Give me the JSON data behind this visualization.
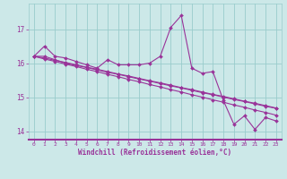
{
  "xlabel": "Windchill (Refroidissement éolien,°C)",
  "x": [
    0,
    1,
    2,
    3,
    4,
    5,
    6,
    7,
    8,
    9,
    10,
    11,
    12,
    13,
    14,
    15,
    16,
    17,
    18,
    19,
    20,
    21,
    22,
    23
  ],
  "line1": [
    16.2,
    16.5,
    16.2,
    16.15,
    16.05,
    15.95,
    15.85,
    16.1,
    15.95,
    15.95,
    15.95,
    16.0,
    16.2,
    17.05,
    17.4,
    15.85,
    15.7,
    15.75,
    14.9,
    14.2,
    14.45,
    14.05,
    14.4,
    14.3
  ],
  "line2": [
    16.2,
    16.2,
    16.1,
    16.0,
    15.93,
    15.87,
    15.8,
    15.73,
    15.67,
    15.6,
    15.53,
    15.47,
    15.4,
    15.33,
    15.27,
    15.2,
    15.13,
    15.07,
    15.0,
    14.93,
    14.87,
    14.8,
    14.73,
    14.67
  ],
  "line3": [
    16.2,
    16.15,
    16.08,
    16.02,
    15.95,
    15.88,
    15.82,
    15.75,
    15.68,
    15.62,
    15.55,
    15.48,
    15.42,
    15.35,
    15.28,
    15.22,
    15.15,
    15.08,
    15.02,
    14.95,
    14.88,
    14.82,
    14.75,
    14.68
  ],
  "line4": [
    16.2,
    16.12,
    16.05,
    15.97,
    15.9,
    15.82,
    15.75,
    15.67,
    15.6,
    15.52,
    15.45,
    15.37,
    15.3,
    15.22,
    15.15,
    15.07,
    15.0,
    14.92,
    14.85,
    14.77,
    14.7,
    14.62,
    14.55,
    14.47
  ],
  "line_color": "#993399",
  "bg_color": "#cce8e8",
  "grid_color": "#99cccc",
  "ylim": [
    13.75,
    17.75
  ],
  "yticks": [
    14,
    15,
    16,
    17
  ],
  "xticks": [
    0,
    1,
    2,
    3,
    4,
    5,
    6,
    7,
    8,
    9,
    10,
    11,
    12,
    13,
    14,
    15,
    16,
    17,
    18,
    19,
    20,
    21,
    22,
    23
  ],
  "markersize": 2.0,
  "linewidth": 0.8
}
